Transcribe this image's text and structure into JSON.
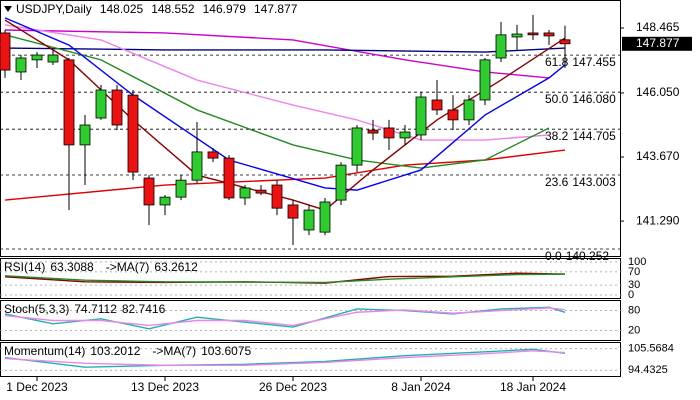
{
  "chart_data": {
    "type": "candlestick",
    "symbol": "USDJPY,Daily",
    "categories": [
      null,
      null,
      "1 Dec 2023",
      null,
      null,
      null,
      null,
      null,
      null,
      null,
      "13 Dec 2023",
      null,
      null,
      null,
      null,
      null,
      null,
      null,
      "26 Dec 2023",
      null,
      null,
      null,
      null,
      null,
      null,
      null,
      "8 Jan 2024",
      null,
      null,
      null,
      null,
      null,
      null,
      "18 Jan 2024",
      null,
      null
    ],
    "open": [
      148.28,
      146.83,
      147.28,
      147.2,
      147.28,
      144.12,
      145.12,
      146.16,
      145.97,
      142.89,
      141.89,
      142.18,
      142.81,
      143.86,
      143.63,
      142.15,
      142.44,
      142.63,
      141.89,
      140.96,
      140.88,
      142.07,
      143.37,
      144.67,
      144.75,
      144.38,
      144.49,
      145.79,
      145.42,
      145.05,
      145.79,
      147.35,
      148.13,
      148.28,
      148.28,
      148.025
    ],
    "high": [
      148.39,
      147.46,
      147.57,
      147.65,
      147.35,
      145.23,
      146.35,
      146.35,
      146.16,
      143.0,
      142.26,
      143.0,
      144.97,
      144.0,
      143.74,
      142.63,
      142.63,
      142.81,
      142.07,
      141.89,
      142.15,
      143.48,
      144.86,
      145.05,
      145.05,
      144.86,
      146.09,
      146.53,
      145.97,
      145.97,
      147.35,
      148.69,
      148.58,
      148.95,
      148.39,
      148.552
    ],
    "low": [
      146.61,
      146.53,
      146.98,
      147.09,
      141.7,
      142.63,
      145.05,
      144.67,
      142.81,
      141.14,
      141.51,
      142.07,
      142.7,
      143.48,
      142.07,
      141.89,
      142.26,
      141.51,
      140.4,
      140.77,
      140.77,
      141.89,
      143.11,
      144.3,
      143.93,
      144.12,
      144.3,
      145.23,
      144.67,
      144.86,
      145.6,
      147.2,
      147.65,
      148.02,
      147.83,
      146.979
    ],
    "close": [
      146.9,
      147.35,
      147.46,
      147.46,
      144.12,
      144.86,
      146.16,
      144.86,
      143.11,
      141.89,
      142.18,
      142.81,
      143.86,
      143.63,
      142.15,
      142.52,
      142.33,
      141.77,
      141.4,
      141.7,
      142.0,
      143.37,
      144.75,
      144.56,
      144.38,
      144.6,
      145.9,
      145.42,
      145.05,
      145.79,
      147.28,
      148.21,
      148.24,
      148.21,
      148.17,
      147.877
    ],
    "up_color": "#2ecc2e",
    "down_color": "#ee1111",
    "ylim": [
      140.03,
      149.43
    ],
    "yticks": [
      148.465,
      {
        "value": 146.05,
        "label": "146.050"
      },
      {
        "value": 143.67,
        "label": "143.670"
      },
      {
        "value": 141.29,
        "label": "141.290"
      }
    ],
    "overlays": [
      {
        "color": "#e00000",
        "x": [
          0,
          10,
          20,
          25,
          30,
          35
        ],
        "values": [
          142.07,
          142.63,
          142.89,
          143.37,
          143.56,
          143.93
        ]
      },
      {
        "color": "#cc00cc",
        "x": [
          0,
          10,
          18,
          25,
          30,
          34
        ],
        "values": [
          148.39,
          148.28,
          148.02,
          147.28,
          146.83,
          146.61
        ]
      },
      {
        "color": "#000080",
        "x": [
          0,
          10,
          20,
          30,
          35
        ],
        "values": [
          147.72,
          147.65,
          147.65,
          147.57,
          147.72
        ]
      },
      {
        "color": "#ee82ee",
        "x": [
          0,
          6,
          12,
          18,
          22,
          26,
          30,
          34
        ],
        "values": [
          148.58,
          148.02,
          146.53,
          145.6,
          145.05,
          144.3,
          144.3,
          144.49
        ]
      },
      {
        "color": "#228b22",
        "x": [
          0,
          6,
          12,
          18,
          22,
          26,
          30,
          34
        ],
        "values": [
          148.21,
          147.28,
          145.42,
          144.12,
          143.56,
          143.26,
          143.56,
          144.75
        ]
      },
      {
        "color": "#0000ff",
        "x": [
          0,
          4,
          8,
          14,
          20,
          22,
          26,
          30,
          34,
          35
        ],
        "values": [
          148.84,
          147.83,
          145.97,
          143.56,
          142.52,
          142.44,
          143.19,
          145.23,
          146.61,
          147.09
        ]
      },
      {
        "color": "#8b0000",
        "x": [
          0,
          4,
          8,
          12,
          18,
          20,
          23,
          27,
          31,
          35
        ],
        "values": [
          148.76,
          147.28,
          145.05,
          143.0,
          142.07,
          141.7,
          143.19,
          145.05,
          146.53,
          148.09
        ]
      }
    ],
    "fib": [
      {
        "ratio": "61.8",
        "price": 147.455
      },
      {
        "ratio": "50.0",
        "price": {
          "value": 146.08,
          "label": "146.080"
        }
      },
      {
        "ratio": "38.2",
        "price": 144.705
      },
      {
        "ratio": "23.6",
        "price": 143.003
      },
      {
        "ratio": "0.0",
        "price": 140.252
      }
    ],
    "panels": [
      {
        "type": "line",
        "title": "RSI(14)",
        "ma_title": "->MA(7)",
        "ylim": [
          0,
          100
        ],
        "yticks": [
          100,
          70,
          30,
          0
        ],
        "series": [
          {
            "color": "#8b0000",
            "x": [
              0,
              5,
              10,
              15,
              20,
              24,
              28,
              32,
              35
            ],
            "values": [
              55,
              40,
              38,
              40,
              36,
              56,
              57,
              66,
              63.3088
            ]
          },
          {
            "color": "#228b22",
            "x": [
              0,
              5,
              10,
              15,
              20,
              24,
              28,
              32,
              35
            ],
            "values": [
              58,
              45,
              40,
              39,
              38,
              48,
              55,
              62,
              63.2612
            ]
          }
        ]
      },
      {
        "type": "line",
        "title": "Stoch(5,3,3)",
        "ylim": [
          0,
          100
        ],
        "yticks": [
          80,
          20
        ],
        "series": [
          {
            "color": "#20b2aa",
            "x": [
              0,
              3,
              6,
              9,
              12,
              15,
              18,
              22,
              25,
              28,
              31,
              34,
              35
            ],
            "values": [
              70,
              40,
              55,
              25,
              60,
              45,
              30,
              85,
              80,
              70,
              85,
              90,
              74.7112
            ]
          },
          {
            "color": "#ee82ee",
            "x": [
              0,
              3,
              6,
              9,
              12,
              15,
              18,
              22,
              25,
              28,
              31,
              34,
              35
            ],
            "values": [
              65,
              50,
              50,
              35,
              50,
              50,
              35,
              75,
              82,
              72,
              80,
              88,
              82.7416
            ]
          }
        ]
      },
      {
        "type": "line",
        "title": "Momentum(14)",
        "ma_title": "->MA(7)",
        "ylim": [
          93,
          107
        ],
        "yticks": [
          105.5684,
          94.4325
        ],
        "series": [
          {
            "color": "#20b2aa",
            "x": [
              0,
              5,
              10,
              15,
              20,
              25,
              30,
              33,
              35
            ],
            "values": [
              101,
              96,
              97,
              97.5,
              99,
              102,
              104,
              105.3,
              103.2012
            ]
          },
          {
            "color": "#ee82ee",
            "x": [
              0,
              5,
              10,
              15,
              20,
              25,
              30,
              33,
              35
            ],
            "values": [
              100.5,
              98,
              97,
              97,
              98.5,
              101,
              103,
              104.5,
              103.6075
            ]
          }
        ]
      }
    ]
  }
}
